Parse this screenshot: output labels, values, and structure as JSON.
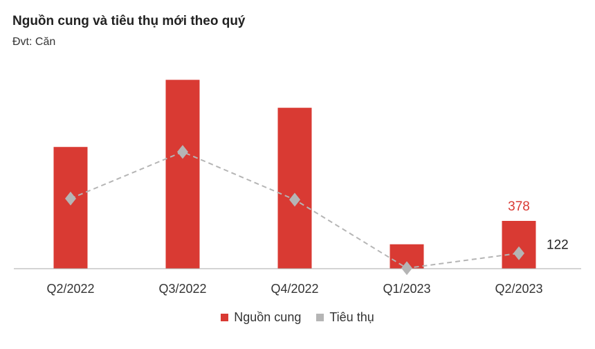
{
  "chart_data": {
    "type": "bar",
    "title": "Nguồn cung và tiêu thụ mới theo quý",
    "subtitle": "Đvt: Căn",
    "categories": [
      "Q2/2022",
      "Q3/2022",
      "Q4/2022",
      "Q1/2023",
      "Q2/2023"
    ],
    "series": [
      {
        "name": "Nguồn cung",
        "type": "bar",
        "color": "#d93a33",
        "values": [
          963,
          1494,
          1273,
          193,
          378
        ]
      },
      {
        "name": "Tiêu thụ",
        "type": "line",
        "style": "dashed",
        "marker": "diamond",
        "color": "#b5b5b5",
        "values": [
          555,
          924,
          546,
          4,
          122
        ]
      }
    ],
    "data_labels": [
      {
        "series": "Nguồn cung",
        "category": "Q2/2023",
        "text": "378",
        "color": "#d93a33"
      },
      {
        "series": "Tiêu thụ",
        "category": "Q2/2023",
        "text": "122",
        "color": "#222222"
      }
    ],
    "ylim": [
      0,
      1560
    ],
    "grid": false,
    "legend": "bottom"
  }
}
